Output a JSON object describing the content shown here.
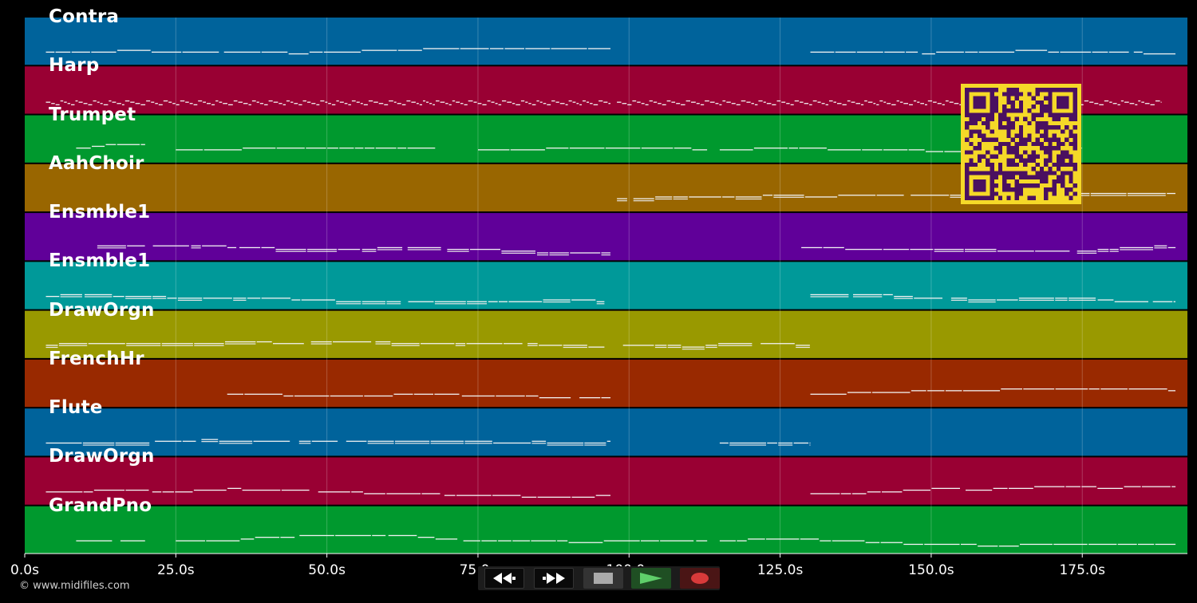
{
  "timeline": {
    "ticks": [
      {
        "t": 0,
        "label": "0.0s"
      },
      {
        "t": 25,
        "label": "25.0s"
      },
      {
        "t": 50,
        "label": "50.0s"
      },
      {
        "t": 75,
        "label": "75.0s"
      },
      {
        "t": 100,
        "label": "100.0s"
      },
      {
        "t": 125,
        "label": "125.0s"
      },
      {
        "t": 150,
        "label": "150.0s"
      },
      {
        "t": 175,
        "label": "175.0s"
      }
    ]
  },
  "tracks": [
    {
      "name": "Contra",
      "color": "#00639b",
      "segments": [
        [
          3.5,
          97
        ],
        [
          130,
          190.5
        ]
      ],
      "style": "line"
    },
    {
      "name": "Harp",
      "color": "#990033",
      "segments": [
        [
          3.5,
          97
        ],
        [
          98,
          188
        ]
      ],
      "style": "arp"
    },
    {
      "name": "Trumpet",
      "color": "#00992e",
      "segments": [
        [
          8.5,
          20
        ],
        [
          25,
          68
        ],
        [
          75,
          113
        ],
        [
          115,
          175
        ]
      ],
      "style": "line"
    },
    {
      "name": "AahChoir",
      "color": "#996600",
      "segments": [
        [
          98,
          190.5
        ]
      ],
      "style": "double"
    },
    {
      "name": "Ensmble1",
      "color": "#600099",
      "segments": [
        [
          12,
          97
        ],
        [
          128.5,
          190.5
        ]
      ],
      "style": "double"
    },
    {
      "name": "Ensmble1",
      "color": "#009999",
      "segments": [
        [
          3.5,
          96
        ],
        [
          130,
          190.5
        ]
      ],
      "style": "double"
    },
    {
      "name": "DrawOrgn",
      "color": "#999900",
      "segments": [
        [
          3.5,
          96
        ],
        [
          99,
          130
        ]
      ],
      "style": "double"
    },
    {
      "name": "FrenchHr",
      "color": "#992900",
      "segments": [
        [
          33.5,
          97
        ],
        [
          130,
          190.5
        ]
      ],
      "style": "line"
    },
    {
      "name": "Flute",
      "color": "#00639b",
      "segments": [
        [
          3.5,
          97
        ],
        [
          115,
          130
        ]
      ],
      "style": "double"
    },
    {
      "name": "DrawOrgn",
      "color": "#990033",
      "segments": [
        [
          3.5,
          97
        ],
        [
          130,
          190.5
        ]
      ],
      "style": "line"
    },
    {
      "name": "GrandPno",
      "color": "#00992e",
      "segments": [
        [
          8.5,
          20
        ],
        [
          25,
          113
        ],
        [
          115,
          190.5
        ]
      ],
      "style": "line"
    }
  ],
  "qr": {
    "fg": "#4a1060",
    "bg": "#f5d928"
  },
  "transport": {
    "rewind": "rewind-icon",
    "fast_forward": "fast-forward-icon",
    "stop": "stop-icon",
    "play": "play-icon",
    "record": "record-icon"
  },
  "credit": "© www.midifiles.com"
}
